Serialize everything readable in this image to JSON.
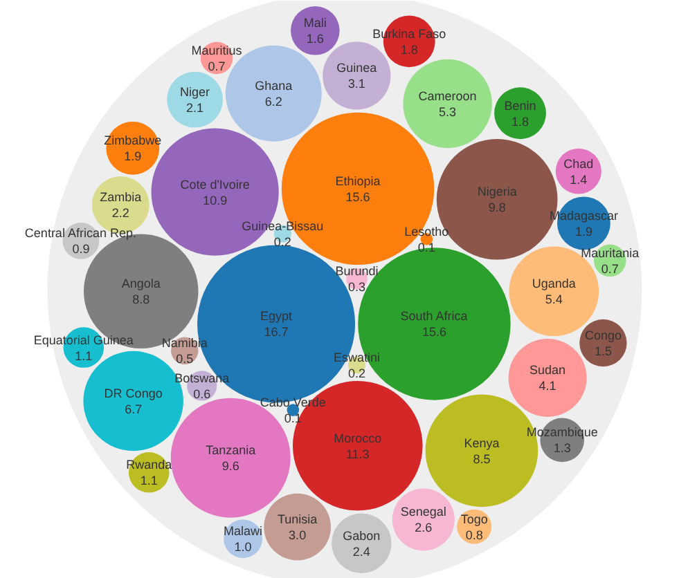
{
  "chart_data": {
    "type": "other",
    "categories": [
      "Egypt",
      "South Africa",
      "Ethiopia",
      "Morocco",
      "Cote d'Ivoire",
      "Nigeria",
      "Tanzania",
      "Angola",
      "Kenya",
      "DR Congo",
      "Ghana",
      "Uganda",
      "Cameroon",
      "Sudan",
      "Guinea",
      "Tunisia",
      "Senegal",
      "Gabon",
      "Zambia",
      "Niger",
      "Zimbabwe",
      "Madagascar",
      "Benin",
      "Burkina Faso",
      "Mali",
      "Congo",
      "Chad",
      "Mozambique",
      "Equatorial Guinea",
      "Rwanda",
      "Malawi",
      "Central African Rep.",
      "Togo",
      "Mauritius",
      "Mauritania",
      "Botswana",
      "Namibia",
      "Burundi",
      "Eswatini",
      "Guinea-Bissau",
      "Lesotho",
      "Cabo Verde"
    ],
    "values": [
      16.7,
      15.6,
      15.6,
      11.3,
      10.9,
      9.8,
      9.6,
      8.8,
      8.5,
      6.7,
      6.2,
      5.4,
      5.3,
      4.1,
      3.1,
      3.0,
      2.6,
      2.4,
      2.2,
      2.1,
      1.9,
      1.9,
      1.8,
      1.8,
      1.6,
      1.5,
      1.4,
      1.3,
      1.1,
      1.1,
      1.0,
      0.9,
      0.8,
      0.7,
      0.7,
      0.6,
      0.5,
      0.3,
      0.2,
      0.2,
      0.1,
      0.1
    ],
    "value_labels": [
      "16.7",
      "15.6",
      "15.6",
      "11.3",
      "10.9",
      "9.8",
      "9.6",
      "8.8",
      "8.5",
      "6.7",
      "6.2",
      "5.4",
      "5.3",
      "4.1",
      "3.1",
      "3.0",
      "2.6",
      "2.4",
      "2.2",
      "2.1",
      "1.9",
      "1.9",
      "1.8",
      "1.8",
      "1.6",
      "1.5",
      "1.4",
      "1.3",
      "1.1",
      "1.1",
      "1.0",
      "0.9",
      "0.8",
      "0.7",
      "0.7",
      "0.6",
      "0.5",
      "0.3",
      "0.2",
      "0.2",
      "0.1",
      "0.1"
    ],
    "colors": [
      "#1f77b4",
      "#2ca02c",
      "#ff7f0e",
      "#d62728",
      "#9467bd",
      "#8c564b",
      "#e377c2",
      "#7f7f7f",
      "#bcbd22",
      "#17becf",
      "#aec7e8",
      "#ffbb78",
      "#98df8a",
      "#ff9896",
      "#c5b0d5",
      "#c49c94",
      "#f7b6d2",
      "#c7c7c7",
      "#dbdb8d",
      "#9edae5",
      "#ff7f0e",
      "#1f77b4",
      "#2ca02c",
      "#d62728",
      "#9467bd",
      "#8c564b",
      "#e377c2",
      "#7f7f7f",
      "#17becf",
      "#bcbd22",
      "#aec7e8",
      "#c7c7c7",
      "#ffbb78",
      "#ff9896",
      "#98df8a",
      "#c5b0d5",
      "#c49c94",
      "#f7b6d2",
      "#dbdb8d",
      "#9edae5",
      "#ff7f0e",
      "#1f77b4"
    ]
  }
}
